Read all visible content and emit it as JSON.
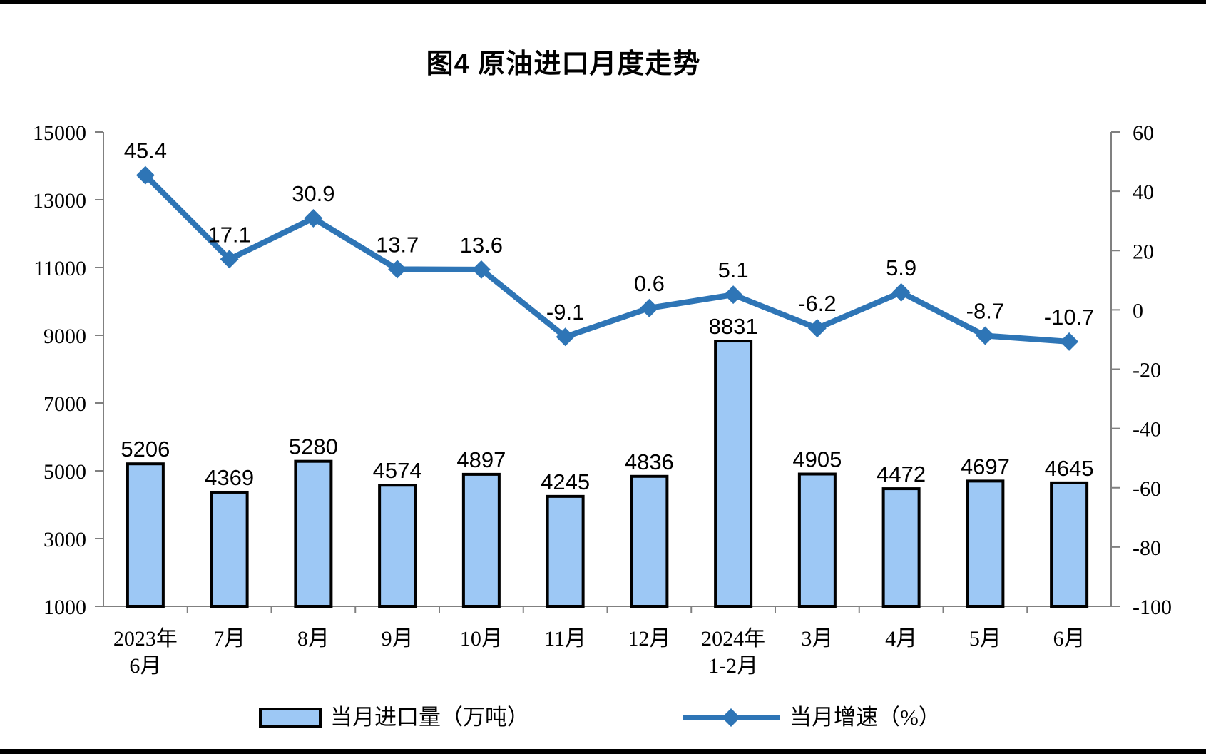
{
  "page": {
    "title": "图4 原油进口月度走势"
  },
  "legend": {
    "bar_label": "当月进口量（万吨）",
    "line_label": "当月增速（%）"
  },
  "colors": {
    "bar_fill": "#9DC8F5",
    "bar_border": "#000000",
    "line_color": "#2E75B6",
    "axis_color": "#808080",
    "text_color": "#000000"
  },
  "chart_data": {
    "type": "bar+line combo",
    "title": "图4 原油进口月度走势",
    "categories": [
      "2023年\n6月",
      "7月",
      "8月",
      "9月",
      "10月",
      "11月",
      "12月",
      "2024年\n1-2月",
      "3月",
      "4月",
      "5月",
      "6月"
    ],
    "series": [
      {
        "name": "当月进口量（万吨）",
        "type": "bar",
        "axis": "left",
        "values": [
          5206,
          4369,
          5280,
          4574,
          4897,
          4245,
          4836,
          8831,
          4905,
          4472,
          4697,
          4645
        ]
      },
      {
        "name": "当月增速（%）",
        "type": "line",
        "axis": "right",
        "values": [
          45.4,
          17.1,
          30.9,
          13.7,
          13.6,
          -9.1,
          0.6,
          5.1,
          -6.2,
          5.9,
          -8.7,
          -10.7
        ]
      }
    ],
    "left_axis": {
      "min": 1000,
      "max": 15000,
      "step": 2000,
      "ticks": [
        15000,
        13000,
        11000,
        9000,
        7000,
        5000,
        3000,
        1000
      ]
    },
    "right_axis": {
      "min": -100,
      "max": 60,
      "step": 20,
      "ticks": [
        60,
        40,
        20,
        0,
        -20,
        -40,
        -60,
        -80,
        -100
      ]
    },
    "grid": false,
    "data_labels": true,
    "legend_position": "bottom"
  }
}
